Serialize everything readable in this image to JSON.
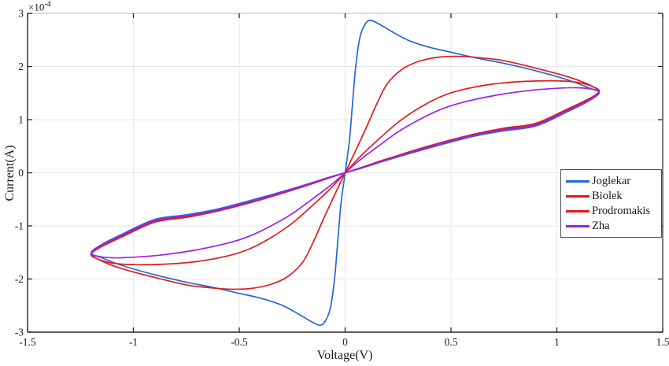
{
  "chart_data": {
    "type": "line",
    "title": "",
    "xlabel": "Voltage(V)",
    "ylabel": "Current(A)",
    "y_exponent": {
      "base": "×10",
      "exp": "-4"
    },
    "y_units_multiplier": 0.0001,
    "xlim": [
      -1.5,
      1.5
    ],
    "ylim": [
      -3,
      3
    ],
    "grid": true,
    "legend_position": "right-middle",
    "x_ticks": {
      "values": [
        -1.5,
        -1,
        -0.5,
        0,
        0.5,
        1,
        1.5
      ],
      "labels": [
        "-1.5",
        "-1",
        "-0.5",
        "0",
        "0.5",
        "1",
        "1.5"
      ]
    },
    "y_ticks": {
      "values": [
        -3,
        -2,
        -1,
        0,
        1,
        2,
        3
      ],
      "labels": [
        "-3",
        "-2",
        "-1",
        "0",
        "1",
        "2",
        "3"
      ]
    },
    "colors": {
      "grid": "#e7e7e7",
      "axis": "#262626",
      "top_edge": "#c4c4c4",
      "background": "#ffffff"
    },
    "symmetry_note": "pinched hysteresis loops; negative-voltage half of every loop is the point reflection (through the origin) of the listed positive-half branches; currents in units of 1e-4 A",
    "series": [
      {
        "name": "Joglekar",
        "color": "#2368d9",
        "upper": [
          [
            0,
            0
          ],
          [
            0.02,
            0.6
          ],
          [
            0.035,
            1.3
          ],
          [
            0.05,
            2.0
          ],
          [
            0.07,
            2.55
          ],
          [
            0.095,
            2.8
          ],
          [
            0.12,
            2.87
          ],
          [
            0.16,
            2.8
          ],
          [
            0.22,
            2.66
          ],
          [
            0.3,
            2.49
          ],
          [
            0.4,
            2.36
          ],
          [
            0.5,
            2.27
          ],
          [
            0.62,
            2.16
          ],
          [
            0.75,
            2.06
          ],
          [
            0.9,
            1.92
          ],
          [
            1.05,
            1.75
          ],
          [
            1.15,
            1.6
          ],
          [
            1.2,
            1.51
          ]
        ],
        "return": [
          [
            1.2,
            1.5
          ],
          [
            1.15,
            1.35
          ],
          [
            1.05,
            1.15
          ],
          [
            0.9,
            0.88
          ],
          [
            0.75,
            0.79
          ],
          [
            0.6,
            0.68
          ],
          [
            0.4,
            0.47
          ],
          [
            0.2,
            0.24
          ],
          [
            0.08,
            0.09
          ],
          [
            0,
            0
          ]
        ]
      },
      {
        "name": "Biolek",
        "color": "#e01c1c",
        "upper": [
          [
            0,
            0
          ],
          [
            0.05,
            0.42
          ],
          [
            0.1,
            0.85
          ],
          [
            0.15,
            1.3
          ],
          [
            0.2,
            1.68
          ],
          [
            0.27,
            1.95
          ],
          [
            0.35,
            2.1
          ],
          [
            0.45,
            2.18
          ],
          [
            0.55,
            2.19
          ],
          [
            0.65,
            2.16
          ],
          [
            0.75,
            2.11
          ],
          [
            0.9,
            1.97
          ],
          [
            1.05,
            1.81
          ],
          [
            1.15,
            1.66
          ],
          [
            1.2,
            1.52
          ]
        ],
        "return": [
          [
            1.2,
            1.52
          ],
          [
            1.15,
            1.37
          ],
          [
            1.05,
            1.18
          ],
          [
            0.9,
            0.91
          ],
          [
            0.75,
            0.82
          ],
          [
            0.6,
            0.71
          ],
          [
            0.4,
            0.5
          ],
          [
            0.2,
            0.26
          ],
          [
            0.08,
            0.1
          ],
          [
            0,
            0
          ]
        ]
      },
      {
        "name": "Prodromakis",
        "color": "#e01c1c",
        "upper": [
          [
            0,
            0
          ],
          [
            0.07,
            0.3
          ],
          [
            0.15,
            0.6
          ],
          [
            0.25,
            0.95
          ],
          [
            0.35,
            1.22
          ],
          [
            0.45,
            1.43
          ],
          [
            0.55,
            1.56
          ],
          [
            0.7,
            1.67
          ],
          [
            0.85,
            1.72
          ],
          [
            1.0,
            1.73
          ],
          [
            1.1,
            1.7
          ],
          [
            1.17,
            1.62
          ],
          [
            1.2,
            1.53
          ]
        ],
        "return": [
          [
            1.2,
            1.53
          ],
          [
            1.15,
            1.39
          ],
          [
            1.05,
            1.2
          ],
          [
            0.9,
            0.93
          ],
          [
            0.75,
            0.84
          ],
          [
            0.6,
            0.72
          ],
          [
            0.4,
            0.51
          ],
          [
            0.2,
            0.265
          ],
          [
            0.08,
            0.105
          ],
          [
            0,
            0
          ]
        ]
      },
      {
        "name": "Zha",
        "color": "#9b22e8",
        "upper": [
          [
            0,
            0
          ],
          [
            0.07,
            0.24
          ],
          [
            0.15,
            0.48
          ],
          [
            0.25,
            0.77
          ],
          [
            0.35,
            1.0
          ],
          [
            0.45,
            1.19
          ],
          [
            0.55,
            1.32
          ],
          [
            0.7,
            1.45
          ],
          [
            0.85,
            1.54
          ],
          [
            1.0,
            1.59
          ],
          [
            1.1,
            1.6
          ],
          [
            1.17,
            1.57
          ],
          [
            1.2,
            1.52
          ]
        ],
        "return": [
          [
            1.2,
            1.52
          ],
          [
            1.15,
            1.36
          ],
          [
            1.05,
            1.17
          ],
          [
            0.9,
            0.9
          ],
          [
            0.75,
            0.81
          ],
          [
            0.6,
            0.7
          ],
          [
            0.4,
            0.49
          ],
          [
            0.2,
            0.25
          ],
          [
            0.08,
            0.095
          ],
          [
            0,
            0
          ]
        ]
      }
    ]
  }
}
